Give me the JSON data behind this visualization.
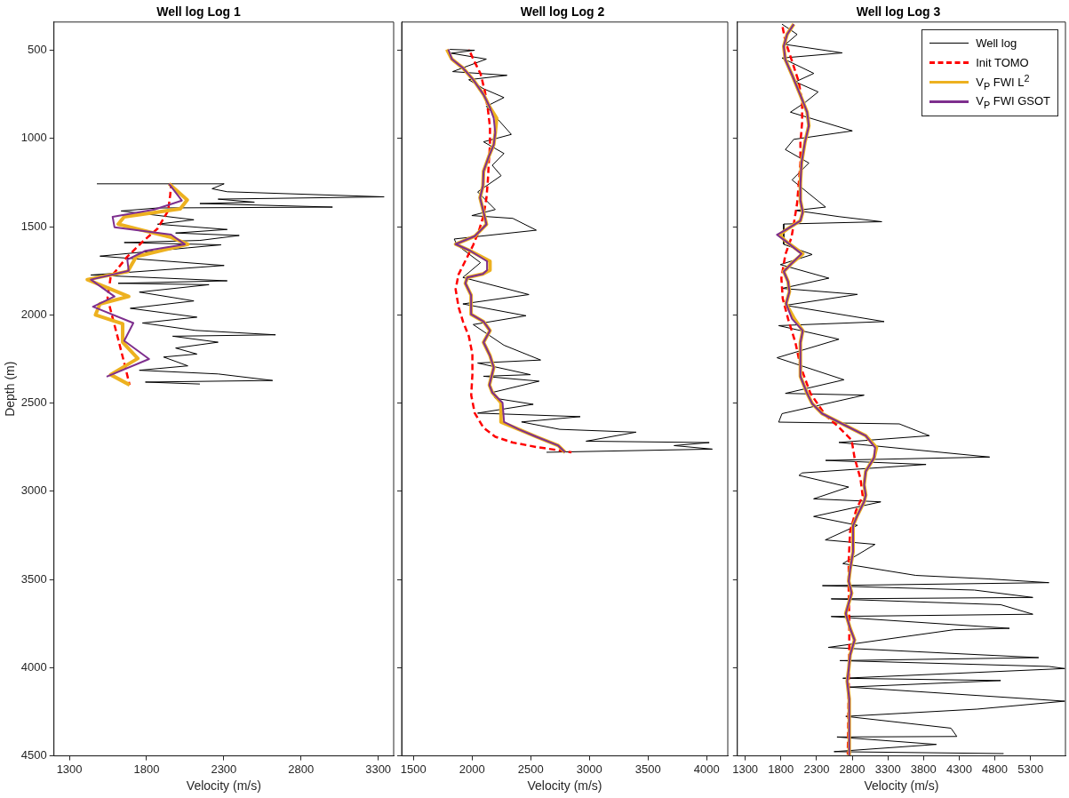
{
  "chart_data": [
    {
      "type": "line",
      "title": "Well log Log 1",
      "xlabel": "Velocity (m/s)",
      "ylabel": "Depth (m)",
      "xlim": [
        1200,
        3400
      ],
      "xticks": [
        1300,
        1800,
        2300,
        2800,
        3300
      ],
      "ylim": [
        4500,
        340
      ],
      "yticks": [
        500,
        1000,
        1500,
        2000,
        2500,
        3000,
        3500,
        4000,
        4500
      ],
      "series": [
        {
          "color": "#000000",
          "line_style": "solid",
          "x": [
            1478,
            2302,
            2224,
            2322,
            3338,
            2263,
            2498,
            2145,
            3004,
            1871,
            1635,
            2106,
            1871,
            2322,
            1988,
            2400,
            2145,
            1655,
            2282,
            2067,
            1498,
            2302,
            1439,
            2322,
            1616,
            2204,
            1753,
            2106,
            1694,
            2126,
            1773,
            2116,
            2635,
            1969,
            2263,
            1988,
            2126,
            1910,
            2067,
            1753,
            2263,
            2616,
            1792,
            2145
          ],
          "values": [
            1257,
            1257,
            1285,
            1302,
            1331,
            1344,
            1361,
            1369,
            1389,
            1394,
            1411,
            1461,
            1486,
            1516,
            1536,
            1550,
            1578,
            1590,
            1603,
            1620,
            1667,
            1720,
            1774,
            1807,
            1821,
            1829,
            1871,
            1921,
            1963,
            2013,
            2046,
            2088,
            2113,
            2121,
            2155,
            2188,
            2222,
            2239,
            2289,
            2314,
            2335,
            2372,
            2381,
            2392
          ]
        },
        {
          "color": "#ff0000",
          "line_style": "dashed",
          "x": [
            1959,
            1953,
            1939,
            1871,
            1773,
            1675,
            1567,
            1547,
            1576,
            1616,
            1655,
            1690
          ],
          "values": [
            1257,
            1319,
            1411,
            1511,
            1586,
            1670,
            1787,
            1904,
            2004,
            2138,
            2272,
            2397
          ]
        },
        {
          "color": "#edb120",
          "line_style": "solid",
          "x": [
            1945,
            2063,
            2018,
            1655,
            1616,
            1959,
            2067,
            1733,
            1678,
            1416,
            1684,
            1498,
            1469,
            1645,
            1645,
            1743,
            1567,
            1690
          ],
          "values": [
            1257,
            1349,
            1399,
            1444,
            1486,
            1561,
            1600,
            1670,
            1754,
            1800,
            1896,
            1938,
            2000,
            2051,
            2155,
            2247,
            2339,
            2397
          ]
        },
        {
          "color": "#7e2f8e",
          "line_style": "solid",
          "x": [
            1945,
            2028,
            1851,
            1580,
            1592,
            1959,
            2047,
            1792,
            1675,
            1684,
            1439,
            1592,
            1453,
            1714,
            1655,
            1816,
            1541
          ],
          "values": [
            1257,
            1352,
            1403,
            1444,
            1503,
            1545,
            1600,
            1637,
            1687,
            1750,
            1800,
            1896,
            1954,
            2046,
            2147,
            2250,
            2350
          ]
        }
      ]
    },
    {
      "type": "line",
      "title": "Well log Log 2",
      "xlabel": "Velocity (m/s)",
      "xlim": [
        1400,
        4180
      ],
      "xticks": [
        1500,
        2000,
        2500,
        3000,
        3500,
        4000
      ],
      "ylim": [
        4500,
        340
      ],
      "yticks": [
        500,
        1000,
        1500,
        2000,
        2500,
        3000,
        3500,
        4000,
        4500
      ],
      "tick_labels": "x",
      "series": [
        {
          "color": "#000000",
          "line_style": "solid",
          "x": [
            1810,
            2022,
            1822,
            2122,
            1835,
            2298,
            1972,
            2098,
            2272,
            2122,
            2335,
            2098,
            2272,
            2172,
            2248,
            2048,
            2198,
            1998,
            2348,
            2548,
            1848,
            1872,
            2072,
            1922,
            2485,
            1922,
            2460,
            2010,
            2272,
            2585,
            2048,
            2498,
            2098,
            2572,
            2172,
            2198,
            2522,
            2048,
            2922,
            2422,
            2748,
            3398,
            2972,
            4022,
            3722,
            4048,
            2635
          ],
          "values": [
            495,
            500,
            517,
            550,
            621,
            642,
            667,
            718,
            768,
            818,
            977,
            1019,
            1085,
            1152,
            1211,
            1303,
            1403,
            1437,
            1453,
            1520,
            1570,
            1604,
            1704,
            1788,
            1885,
            1938,
            2005,
            2055,
            2172,
            2256,
            2273,
            2339,
            2348,
            2376,
            2440,
            2473,
            2507,
            2557,
            2577,
            2607,
            2649,
            2665,
            2716,
            2724,
            2741,
            2761,
            2779
          ]
        },
        {
          "color": "#ff0000",
          "line_style": "dashed",
          "x": [
            1973,
            2010,
            2073,
            2110,
            2135,
            2153,
            2153,
            2143,
            2135,
            2123,
            2098,
            2060,
            2010,
            1948,
            1885,
            1860,
            1885,
            1923,
            1973,
            2003,
            2003,
            1993,
            2023,
            2098,
            2198,
            2348,
            2548,
            2723,
            2848
          ],
          "values": [
            495,
            550,
            634,
            734,
            835,
            935,
            1035,
            1136,
            1236,
            1336,
            1437,
            1520,
            1604,
            1687,
            1771,
            1855,
            1955,
            2038,
            2122,
            2222,
            2339,
            2456,
            2557,
            2640,
            2691,
            2724,
            2749,
            2766,
            2779
          ]
        },
        {
          "color": "#edb120",
          "line_style": "solid",
          "x": [
            1785,
            1828,
            1923,
            2010,
            2098,
            2148,
            2210,
            2198,
            2185,
            2143,
            2098,
            2093,
            2068,
            2093,
            2123,
            2023,
            1860,
            1985,
            2153,
            2153,
            2093,
            1960,
            1943,
            1992,
            1992,
            2098,
            2153,
            2098,
            2153,
            2185,
            2148,
            2173,
            2247,
            2247,
            2398,
            2548,
            2735,
            2793
          ],
          "values": [
            495,
            550,
            601,
            667,
            751,
            818,
            885,
            968,
            1035,
            1102,
            1186,
            1269,
            1336,
            1403,
            1487,
            1554,
            1599,
            1637,
            1696,
            1746,
            1768,
            1788,
            1821,
            1888,
            1997,
            2038,
            2089,
            2156,
            2231,
            2298,
            2398,
            2440,
            2498,
            2607,
            2649,
            2691,
            2741,
            2779
          ]
        },
        {
          "color": "#7e2f8e",
          "line_style": "solid",
          "x": [
            1798,
            1828,
            1923,
            2010,
            2098,
            2148,
            2185,
            2198,
            2185,
            2143,
            2098,
            2093,
            2068,
            2093,
            2123,
            2023,
            1860,
            1985,
            2128,
            2128,
            2093,
            1960,
            1943,
            1992,
            1992,
            2098,
            2153,
            2098,
            2153,
            2185,
            2148,
            2173,
            2260,
            2273,
            2398,
            2548,
            2735,
            2793
          ],
          "values": [
            495,
            550,
            601,
            667,
            751,
            818,
            885,
            968,
            1035,
            1102,
            1186,
            1269,
            1336,
            1403,
            1487,
            1554,
            1599,
            1637,
            1696,
            1746,
            1768,
            1788,
            1821,
            1888,
            1997,
            2038,
            2089,
            2156,
            2231,
            2298,
            2398,
            2440,
            2498,
            2607,
            2649,
            2691,
            2741,
            2779
          ]
        }
      ]
    },
    {
      "type": "line",
      "title": "Well log Log 3",
      "xlabel": "Velocity (m/s)",
      "xlim": [
        1190,
        5790
      ],
      "xticks": [
        1300,
        1800,
        2300,
        2800,
        3300,
        3800,
        4300,
        4800,
        5300
      ],
      "ylim": [
        4500,
        340
      ],
      "yticks": [
        500,
        1000,
        1500,
        2000,
        2500,
        3000,
        3500,
        4000,
        4500
      ],
      "tick_labels": "x",
      "legend": "top right",
      "series": [
        {
          "name": "Well log",
          "color": "#000000",
          "line_style": "solid",
          "x": [
            1816,
            2028,
            1863,
            2661,
            1816,
            2262,
            2004,
            2323,
            2145,
            1934,
            2802,
            1981,
            1863,
            2192,
            1957,
            2427,
            2004,
            2614,
            3215,
            1840,
            1840,
            2239,
            1793,
            2474,
            1816,
            2873,
            1863,
            3248,
            1769,
            2614,
            1746,
            2685,
            1863,
            2967,
            1816,
            1769,
            3460,
            3882,
            2614,
            4727,
            2427,
            3835,
            2098,
            2054,
            2751,
            2259,
            3201,
            2259,
            2874,
            2423,
            3120,
            2669,
            3693,
            4718,
            5558,
            2382,
            4513,
            5333,
            2505,
            4882,
            5333,
            2505,
            5005,
            4226,
            2464,
            5414,
            2628,
            5558,
            5780,
            2669,
            4882,
            2751,
            5780,
            4554,
            2710,
            4185,
            4267,
            2587,
            3980,
            2546,
            4923
          ],
          "values": [
            352,
            410,
            467,
            515,
            544,
            631,
            679,
            736,
            794,
            851,
            957,
            1005,
            1063,
            1139,
            1235,
            1389,
            1408,
            1443,
            1472,
            1485,
            1600,
            1658,
            1715,
            1792,
            1850,
            1884,
            1946,
            2038,
            2061,
            2138,
            2243,
            2368,
            2445,
            2455,
            2560,
            2608,
            2618,
            2685,
            2723,
            2806,
            2825,
            2848,
            2896,
            2910,
            2976,
            3043,
            3060,
            3143,
            3193,
            3276,
            3301,
            3410,
            3477,
            3497,
            3518,
            3535,
            3560,
            3602,
            3610,
            3643,
            3697,
            3710,
            3777,
            3785,
            3885,
            3943,
            3960,
            3993,
            4005,
            4060,
            4073,
            4110,
            4190,
            4235,
            4276,
            4343,
            4390,
            4393,
            4435,
            4476,
            4487
          ]
        },
        {
          "name": "Init TOMO",
          "color": "#ff0000",
          "line_style": "dashed",
          "x": [
            1816,
            1863,
            1957,
            2051,
            2098,
            2098,
            2074,
            2074,
            2051,
            2027,
            1981,
            1948,
            1863,
            1807,
            1826,
            1901,
            2004,
            2074,
            2215,
            2427,
            2614,
            2792,
            2833,
            2915,
            2947,
            2853,
            2771,
            2751,
            2751,
            2759,
            2759,
            2738
          ],
          "values": [
            352,
            448,
            563,
            679,
            794,
            909,
            1024,
            1139,
            1255,
            1370,
            1485,
            1562,
            1658,
            1792,
            1907,
            2023,
            2157,
            2291,
            2445,
            2570,
            2637,
            2710,
            2810,
            2926,
            3026,
            3110,
            3226,
            3393,
            3560,
            3727,
            3893,
            4493
          ]
        },
        {
          "name": "V$_{P}$ FWI L$^{2}$",
          "color": "#edb120",
          "line_style": "solid",
          "x": [
            1981,
            1887,
            1840,
            1863,
            1957,
            2074,
            2168,
            2192,
            2136,
            2089,
            2074,
            2074,
            2107,
            2074,
            1887,
            1780,
            1863,
            2107,
            1957,
            1840,
            1901,
            1920,
            1873,
            1990,
            2107,
            2074,
            2074,
            2168,
            2239,
            2380,
            2661,
            2990,
            3140,
            3107,
            2990,
            2967,
            2990,
            2967,
            2873,
            2812,
            2812,
            2771,
            2751,
            2792,
            2710,
            2771,
            2833,
            2771,
            2751,
            2730,
            2759,
            2759
          ],
          "values": [
            352,
            410,
            477,
            554,
            640,
            755,
            851,
            928,
            1024,
            1139,
            1255,
            1351,
            1418,
            1466,
            1514,
            1546,
            1581,
            1654,
            1706,
            1754,
            1811,
            1869,
            1936,
            2023,
            2090,
            2157,
            2349,
            2445,
            2503,
            2560,
            2618,
            2685,
            2752,
            2810,
            2887,
            2964,
            3021,
            3059,
            3136,
            3194,
            3344,
            3443,
            3510,
            3577,
            3693,
            3777,
            3843,
            3927,
            4010,
            4077,
            4177,
            4493
          ]
        },
        {
          "name": "V$_{P}$ FWI GSOT",
          "color": "#7e2f8e",
          "line_style": "solid",
          "x": [
            1981,
            1887,
            1840,
            1863,
            1957,
            2074,
            2168,
            2192,
            2136,
            2089,
            2074,
            2074,
            2107,
            2074,
            1887,
            1746,
            1863,
            2089,
            1957,
            1840,
            1901,
            1920,
            1873,
            1957,
            2107,
            2074,
            2074,
            2168,
            2239,
            2380,
            2661,
            2990,
            3121,
            3107,
            2990,
            2967,
            2990,
            2967,
            2873,
            2812,
            2812,
            2771,
            2751,
            2792,
            2710,
            2771,
            2833,
            2771,
            2751,
            2730,
            2759,
            2759
          ],
          "values": [
            352,
            410,
            477,
            554,
            640,
            755,
            851,
            928,
            1024,
            1139,
            1255,
            1351,
            1418,
            1466,
            1514,
            1546,
            1581,
            1654,
            1706,
            1754,
            1811,
            1869,
            1936,
            2023,
            2090,
            2157,
            2349,
            2445,
            2503,
            2560,
            2618,
            2685,
            2752,
            2810,
            2887,
            2964,
            3021,
            3059,
            3136,
            3194,
            3344,
            3443,
            3510,
            3577,
            3693,
            3777,
            3843,
            3927,
            4010,
            4077,
            4177,
            4493
          ]
        }
      ]
    }
  ]
}
